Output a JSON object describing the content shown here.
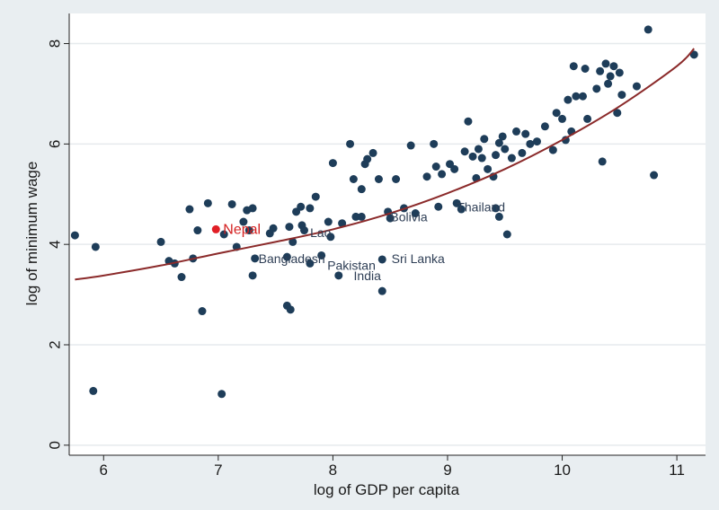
{
  "chart_data": {
    "type": "scatter",
    "title": "",
    "xlabel": "log of GDP per capita",
    "ylabel": "log of minimum wage",
    "xlim": [
      5.7,
      11.25
    ],
    "ylim": [
      -0.2,
      8.6
    ],
    "xticks": [
      6,
      7,
      8,
      9,
      10,
      11
    ],
    "yticks": [
      0,
      2,
      4,
      6,
      8
    ],
    "grid": true,
    "colors": {
      "plot_bg": "#ffffff",
      "outer_bg": "#e9eef1",
      "grid": "#e6eaed",
      "point": "#1e3d59",
      "highlight": "#e11f26",
      "fit": "#8b2a2a"
    },
    "fit_curve": {
      "name": "fitted curve",
      "x": [
        5.75,
        6.0,
        6.5,
        7.0,
        7.5,
        8.0,
        8.5,
        9.0,
        9.5,
        10.0,
        10.5,
        11.0,
        11.15
      ],
      "y": [
        3.3,
        3.38,
        3.58,
        3.82,
        4.05,
        4.3,
        4.62,
        5.02,
        5.5,
        6.08,
        6.75,
        7.55,
        7.9
      ]
    },
    "points": [
      {
        "x": 5.75,
        "y": 4.18
      },
      {
        "x": 5.93,
        "y": 3.95
      },
      {
        "x": 5.91,
        "y": 1.08
      },
      {
        "x": 6.5,
        "y": 4.05
      },
      {
        "x": 6.57,
        "y": 3.67
      },
      {
        "x": 6.62,
        "y": 3.62
      },
      {
        "x": 6.68,
        "y": 3.35
      },
      {
        "x": 6.75,
        "y": 4.7
      },
      {
        "x": 6.78,
        "y": 3.72
      },
      {
        "x": 6.82,
        "y": 4.28
      },
      {
        "x": 6.86,
        "y": 2.67
      },
      {
        "x": 6.91,
        "y": 4.82
      },
      {
        "x": 7.03,
        "y": 1.02
      },
      {
        "x": 7.05,
        "y": 4.2
      },
      {
        "x": 7.12,
        "y": 4.8
      },
      {
        "x": 7.16,
        "y": 3.95
      },
      {
        "x": 7.22,
        "y": 4.45
      },
      {
        "x": 7.25,
        "y": 4.68
      },
      {
        "x": 7.27,
        "y": 4.28
      },
      {
        "x": 7.3,
        "y": 4.72
      },
      {
        "x": 7.3,
        "y": 3.38
      },
      {
        "x": 7.32,
        "y": 3.72
      },
      {
        "x": 7.45,
        "y": 4.22
      },
      {
        "x": 7.48,
        "y": 4.32
      },
      {
        "x": 7.6,
        "y": 2.78
      },
      {
        "x": 7.6,
        "y": 3.75
      },
      {
        "x": 7.62,
        "y": 4.35
      },
      {
        "x": 7.63,
        "y": 2.7
      },
      {
        "x": 7.65,
        "y": 4.05
      },
      {
        "x": 7.68,
        "y": 4.65
      },
      {
        "x": 7.72,
        "y": 4.75
      },
      {
        "x": 7.73,
        "y": 4.38
      },
      {
        "x": 7.75,
        "y": 4.28
      },
      {
        "x": 7.8,
        "y": 4.72
      },
      {
        "x": 7.8,
        "y": 3.62
      },
      {
        "x": 7.85,
        "y": 4.95
      },
      {
        "x": 7.9,
        "y": 3.78
      },
      {
        "x": 7.96,
        "y": 4.45
      },
      {
        "x": 7.98,
        "y": 4.15
      },
      {
        "x": 8.0,
        "y": 5.62
      },
      {
        "x": 8.05,
        "y": 3.38
      },
      {
        "x": 8.08,
        "y": 4.42
      },
      {
        "x": 8.15,
        "y": 6.0
      },
      {
        "x": 8.18,
        "y": 5.3
      },
      {
        "x": 8.2,
        "y": 4.55
      },
      {
        "x": 8.25,
        "y": 5.1
      },
      {
        "x": 8.25,
        "y": 4.55
      },
      {
        "x": 8.28,
        "y": 5.6
      },
      {
        "x": 8.3,
        "y": 5.7
      },
      {
        "x": 8.35,
        "y": 5.82
      },
      {
        "x": 8.4,
        "y": 5.3
      },
      {
        "x": 8.43,
        "y": 3.07
      },
      {
        "x": 8.43,
        "y": 3.7
      },
      {
        "x": 8.48,
        "y": 4.65
      },
      {
        "x": 8.5,
        "y": 4.52
      },
      {
        "x": 8.55,
        "y": 5.3
      },
      {
        "x": 8.62,
        "y": 4.72
      },
      {
        "x": 8.68,
        "y": 5.97
      },
      {
        "x": 8.72,
        "y": 4.62
      },
      {
        "x": 8.82,
        "y": 5.35
      },
      {
        "x": 8.88,
        "y": 6.0
      },
      {
        "x": 8.9,
        "y": 5.55
      },
      {
        "x": 8.92,
        "y": 4.75
      },
      {
        "x": 8.95,
        "y": 5.4
      },
      {
        "x": 9.02,
        "y": 5.6
      },
      {
        "x": 9.06,
        "y": 5.5
      },
      {
        "x": 9.08,
        "y": 4.82
      },
      {
        "x": 9.12,
        "y": 4.7
      },
      {
        "x": 9.15,
        "y": 5.85
      },
      {
        "x": 9.18,
        "y": 6.45
      },
      {
        "x": 9.22,
        "y": 5.75
      },
      {
        "x": 9.25,
        "y": 5.32
      },
      {
        "x": 9.27,
        "y": 5.9
      },
      {
        "x": 9.3,
        "y": 5.72
      },
      {
        "x": 9.32,
        "y": 6.1
      },
      {
        "x": 9.35,
        "y": 5.5
      },
      {
        "x": 9.4,
        "y": 5.35
      },
      {
        "x": 9.42,
        "y": 5.78
      },
      {
        "x": 9.42,
        "y": 4.72
      },
      {
        "x": 9.45,
        "y": 6.02
      },
      {
        "x": 9.45,
        "y": 4.55
      },
      {
        "x": 9.48,
        "y": 6.15
      },
      {
        "x": 9.5,
        "y": 5.9
      },
      {
        "x": 9.52,
        "y": 4.2
      },
      {
        "x": 9.56,
        "y": 5.72
      },
      {
        "x": 9.6,
        "y": 6.25
      },
      {
        "x": 9.65,
        "y": 5.82
      },
      {
        "x": 9.68,
        "y": 6.2
      },
      {
        "x": 9.72,
        "y": 6.0
      },
      {
        "x": 9.78,
        "y": 6.05
      },
      {
        "x": 9.85,
        "y": 6.35
      },
      {
        "x": 9.92,
        "y": 5.88
      },
      {
        "x": 9.95,
        "y": 6.62
      },
      {
        "x": 10.0,
        "y": 6.5
      },
      {
        "x": 10.03,
        "y": 6.08
      },
      {
        "x": 10.05,
        "y": 6.88
      },
      {
        "x": 10.08,
        "y": 6.25
      },
      {
        "x": 10.1,
        "y": 7.55
      },
      {
        "x": 10.12,
        "y": 6.95
      },
      {
        "x": 10.18,
        "y": 6.95
      },
      {
        "x": 10.2,
        "y": 7.5
      },
      {
        "x": 10.22,
        "y": 6.5
      },
      {
        "x": 10.3,
        "y": 7.1
      },
      {
        "x": 10.33,
        "y": 7.45
      },
      {
        "x": 10.35,
        "y": 5.65
      },
      {
        "x": 10.38,
        "y": 7.6
      },
      {
        "x": 10.4,
        "y": 7.2
      },
      {
        "x": 10.42,
        "y": 7.35
      },
      {
        "x": 10.45,
        "y": 7.55
      },
      {
        "x": 10.48,
        "y": 6.62
      },
      {
        "x": 10.5,
        "y": 7.42
      },
      {
        "x": 10.52,
        "y": 6.98
      },
      {
        "x": 10.65,
        "y": 7.15
      },
      {
        "x": 10.75,
        "y": 8.28
      },
      {
        "x": 10.8,
        "y": 5.38
      },
      {
        "x": 11.15,
        "y": 7.78
      }
    ],
    "highlight_point": {
      "label": "Nepal",
      "x": 6.98,
      "y": 4.3
    },
    "labeled_points": [
      {
        "label": "Bangladesh",
        "x": 7.32,
        "y": 3.72
      },
      {
        "label": "Pakistan",
        "x": 7.92,
        "y": 3.58
      },
      {
        "label": "India",
        "x": 8.15,
        "y": 3.38
      },
      {
        "label": "Sri Lanka",
        "x": 8.48,
        "y": 3.72
      },
      {
        "label": "Lao",
        "x": 7.77,
        "y": 4.24
      },
      {
        "label": "Bolivia",
        "x": 8.47,
        "y": 4.55
      },
      {
        "label": "Thailand",
        "x": 9.05,
        "y": 4.75
      }
    ]
  }
}
